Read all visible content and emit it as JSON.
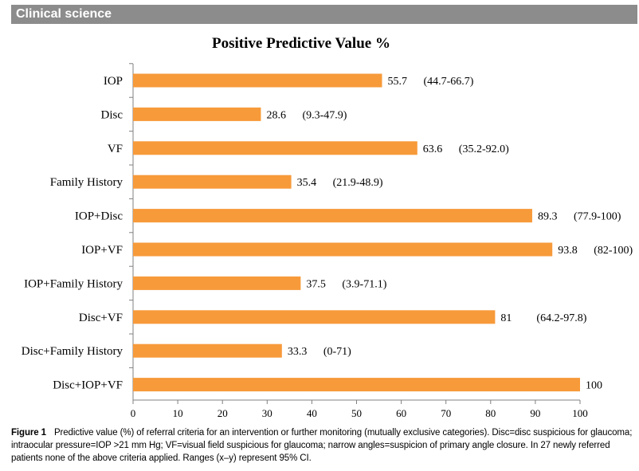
{
  "header": {
    "section_label": "Clinical science"
  },
  "colors": {
    "bar": "#f79a3a",
    "header_bg": "#8c8c8c",
    "axis": "#808080"
  },
  "chart_data": {
    "type": "bar",
    "orientation": "horizontal",
    "title": "Positive Predictive Value %",
    "xlabel": "",
    "ylabel": "",
    "xlim": [
      0,
      100
    ],
    "xticks": [
      0,
      10,
      20,
      30,
      40,
      50,
      60,
      70,
      80,
      90,
      100
    ],
    "grid": false,
    "categories": [
      "IOP",
      "Disc",
      "VF",
      "Family History",
      "IOP+Disc",
      "IOP+VF",
      "IOP+Family History",
      "Disc+VF",
      "Disc+Family History",
      "Disc+IOP+VF"
    ],
    "values": [
      55.7,
      28.6,
      63.6,
      35.4,
      89.3,
      93.8,
      37.5,
      81,
      33.3,
      100
    ],
    "value_labels": [
      "55.7",
      "28.6",
      "63.6",
      "35.4",
      "89.3",
      "93.8",
      "37.5",
      "81",
      "33.3",
      "100"
    ],
    "ci_labels": [
      "(44.7-66.7)",
      "(9.3-47.9)",
      "(35.2-92.0)",
      "(21.9-48.9)",
      "(77.9-100)",
      "(82-100)",
      "(3.9-71.1)",
      "(64.2-97.8)",
      "(0-71)",
      ""
    ]
  },
  "caption": {
    "label": "Figure 1",
    "text": "Predictive value (%) of referral criteria for an intervention or further monitoring (mutually exclusive categories). Disc=disc suspicious for glaucoma; intraocular pressure=IOP >21 mm Hg; VF=visual field suspicious for glaucoma; narrow angles=suspicion of primary angle closure. In 27 newly referred patients none of the above criteria applied. Ranges (x–y) represent 95% CI."
  }
}
